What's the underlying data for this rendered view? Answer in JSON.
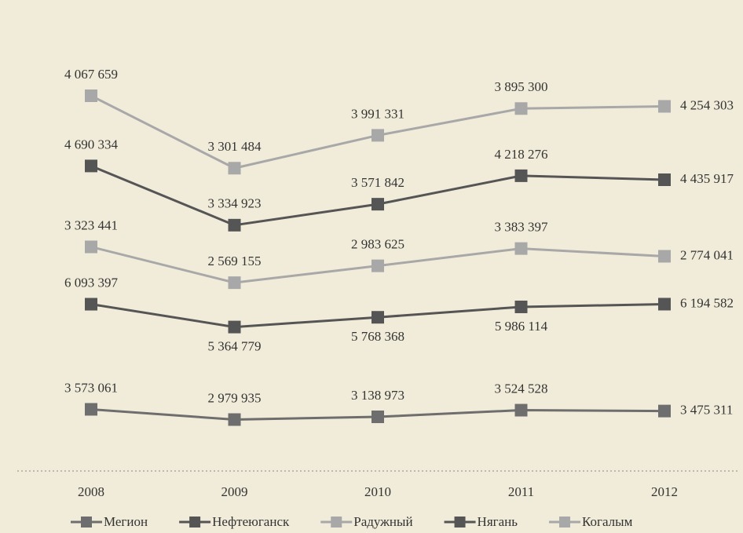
{
  "chart_data": {
    "type": "stacked_line",
    "categories": [
      "2008",
      "2009",
      "2010",
      "2011",
      "2012"
    ],
    "series": [
      {
        "name": "Мегион",
        "color": "#6e6e6e",
        "values": [
          3573061,
          2979935,
          3138973,
          3524528,
          3475311
        ],
        "value_labels": [
          "3 573 061",
          "2 979 935",
          "3 138 973",
          "3 524 528",
          "3 475 311"
        ]
      },
      {
        "name": "Нефтеюганск",
        "color": "#555555",
        "values": [
          6093397,
          5364779,
          5768368,
          5986114,
          6194582
        ],
        "value_labels": [
          "6 093 397",
          "5 364 779",
          "5 768 368",
          "5 986 114",
          "6 194 582"
        ]
      },
      {
        "name": "Радужный",
        "color": "#a8a8a8",
        "values": [
          3323441,
          2569155,
          2983625,
          3383397,
          2774041
        ],
        "value_labels": [
          "3 323 441",
          "2 569 155",
          "2 983 625",
          "3 383 397",
          "2 774 041"
        ]
      },
      {
        "name": "Нягань",
        "color": "#555555",
        "values": [
          4690334,
          3334923,
          3571842,
          4218276,
          4435917
        ],
        "value_labels": [
          "4 690 334",
          "3 334 923",
          "3 571 842",
          "4 218 276",
          "4 435 917"
        ]
      },
      {
        "name": "Когалым",
        "color": "#a8a8a8",
        "values": [
          4067659,
          3301484,
          3991331,
          3895300,
          4254303
        ],
        "value_labels": [
          "4 067 659",
          "3 301 484",
          "3 991 331",
          "3 895 300",
          "4 254 303"
        ]
      }
    ]
  }
}
